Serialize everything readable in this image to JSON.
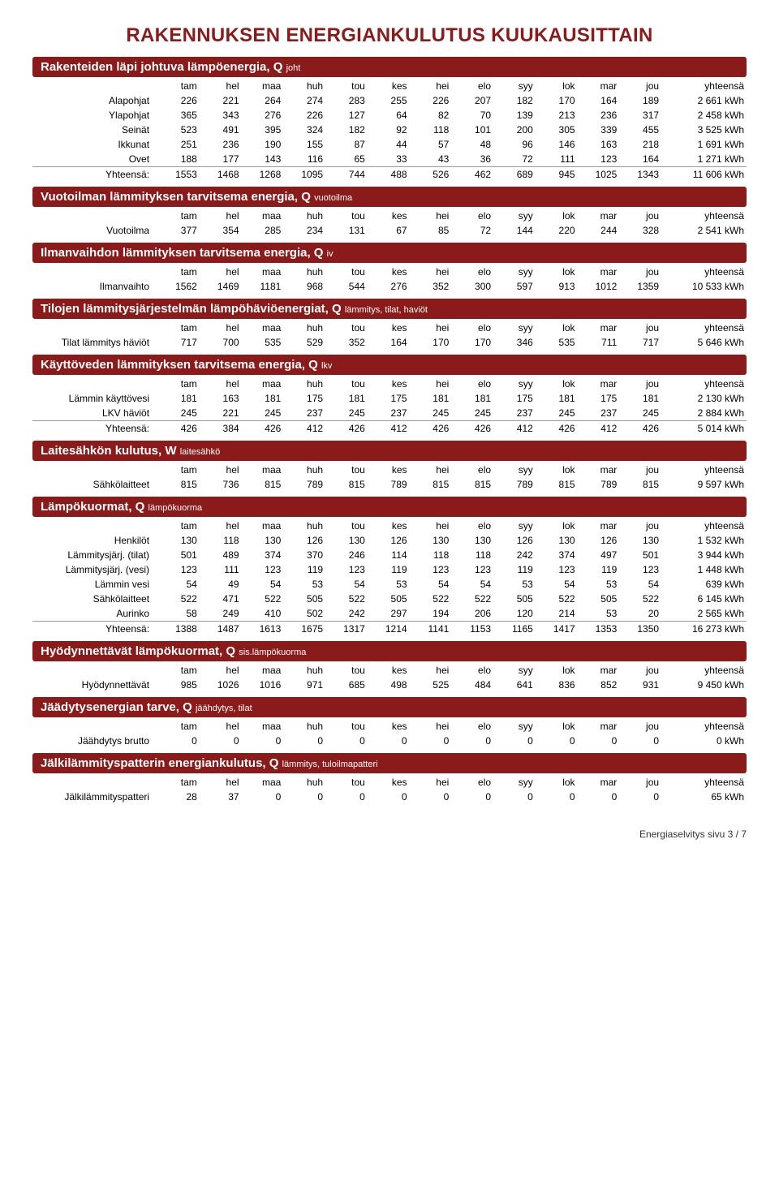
{
  "title": "RAKENNUKSEN ENERGIANKULUTUS KUUKAUSITTAIN",
  "months": [
    "tam",
    "hel",
    "maa",
    "huh",
    "tou",
    "kes",
    "hei",
    "elo",
    "syy",
    "lok",
    "mar",
    "jou"
  ],
  "total_label": "yhteensä",
  "yhteensa_row_label": "Yhteensä:",
  "footer": "Energiaselvitys sivu 3 / 7",
  "sections": [
    {
      "title": "Rakenteiden läpi johtuva lämpöenergia, Q ",
      "sub": "joht",
      "rows": [
        {
          "label": "Alapohjat",
          "v": [
            226,
            221,
            264,
            274,
            283,
            255,
            226,
            207,
            182,
            170,
            164,
            189
          ],
          "t": "2 661 kWh"
        },
        {
          "label": "Ylapohjat",
          "v": [
            365,
            343,
            276,
            226,
            127,
            64,
            82,
            70,
            139,
            213,
            236,
            317
          ],
          "t": "2 458 kWh"
        },
        {
          "label": "Seinät",
          "v": [
            523,
            491,
            395,
            324,
            182,
            92,
            118,
            101,
            200,
            305,
            339,
            455
          ],
          "t": "3 525 kWh"
        },
        {
          "label": "Ikkunat",
          "v": [
            251,
            236,
            190,
            155,
            87,
            44,
            57,
            48,
            96,
            146,
            163,
            218
          ],
          "t": "1 691 kWh"
        },
        {
          "label": "Ovet",
          "v": [
            188,
            177,
            143,
            116,
            65,
            33,
            43,
            36,
            72,
            111,
            123,
            164
          ],
          "t": "1 271 kWh"
        }
      ],
      "total": {
        "v": [
          1553,
          1468,
          1268,
          1095,
          744,
          488,
          526,
          462,
          689,
          945,
          1025,
          1343
        ],
        "t": "11 606 kWh"
      }
    },
    {
      "title": "Vuotoilman lämmityksen tarvitsema energia, Q ",
      "sub": "vuotoilma",
      "rows": [
        {
          "label": "Vuotoilma",
          "v": [
            377,
            354,
            285,
            234,
            131,
            67,
            85,
            72,
            144,
            220,
            244,
            328
          ],
          "t": "2 541 kWh"
        }
      ]
    },
    {
      "title": "Ilmanvaihdon lämmityksen tarvitsema energia, Q ",
      "sub": "iv",
      "rows": [
        {
          "label": "Ilmanvaihto",
          "v": [
            1562,
            1469,
            1181,
            968,
            544,
            276,
            352,
            300,
            597,
            913,
            1012,
            1359
          ],
          "t": "10 533 kWh"
        }
      ]
    },
    {
      "title": "Tilojen lämmitysjärjestelmän lämpöhäviöenergiat, Q ",
      "sub": "lämmitys, tilat, haviöt",
      "rows": [
        {
          "label": "Tilat lämmitys häviöt",
          "v": [
            717,
            700,
            535,
            529,
            352,
            164,
            170,
            170,
            346,
            535,
            711,
            717
          ],
          "t": "5 646 kWh"
        }
      ]
    },
    {
      "title": "Käyttöveden lämmityksen tarvitsema energia, Q ",
      "sub": "lkv",
      "rows": [
        {
          "label": "Lämmin käyttövesi",
          "v": [
            181,
            163,
            181,
            175,
            181,
            175,
            181,
            181,
            175,
            181,
            175,
            181
          ],
          "t": "2 130 kWh"
        },
        {
          "label": "LKV häviöt",
          "v": [
            245,
            221,
            245,
            237,
            245,
            237,
            245,
            245,
            237,
            245,
            237,
            245
          ],
          "t": "2 884 kWh"
        }
      ],
      "total": {
        "v": [
          426,
          384,
          426,
          412,
          426,
          412,
          426,
          426,
          412,
          426,
          412,
          426
        ],
        "t": "5 014 kWh"
      }
    },
    {
      "title": "Laitesähkön kulutus, W ",
      "sub": "laitesähkö",
      "rows": [
        {
          "label": "Sähkölaitteet",
          "v": [
            815,
            736,
            815,
            789,
            815,
            789,
            815,
            815,
            789,
            815,
            789,
            815
          ],
          "t": "9 597 kWh"
        }
      ]
    },
    {
      "title": "Lämpökuormat, Q ",
      "sub": "lämpökuorma",
      "rows": [
        {
          "label": "Henkilöt",
          "v": [
            130,
            118,
            130,
            126,
            130,
            126,
            130,
            130,
            126,
            130,
            126,
            130
          ],
          "t": "1 532 kWh"
        },
        {
          "label": "Lämmitysjärj. (tilat)",
          "v": [
            501,
            489,
            374,
            370,
            246,
            114,
            118,
            118,
            242,
            374,
            497,
            501
          ],
          "t": "3 944 kWh"
        },
        {
          "label": "Lämmitysjärj. (vesi)",
          "v": [
            123,
            111,
            123,
            119,
            123,
            119,
            123,
            123,
            119,
            123,
            119,
            123
          ],
          "t": "1 448 kWh"
        },
        {
          "label": "Lämmin vesi",
          "v": [
            54,
            49,
            54,
            53,
            54,
            53,
            54,
            54,
            53,
            54,
            53,
            54
          ],
          "t": "639 kWh"
        },
        {
          "label": "Sähkölaitteet",
          "v": [
            522,
            471,
            522,
            505,
            522,
            505,
            522,
            522,
            505,
            522,
            505,
            522
          ],
          "t": "6 145 kWh"
        },
        {
          "label": "Aurinko",
          "v": [
            58,
            249,
            410,
            502,
            242,
            297,
            194,
            206,
            120,
            214,
            53,
            20
          ],
          "t": "2 565 kWh"
        }
      ],
      "total": {
        "v": [
          1388,
          1487,
          1613,
          1675,
          1317,
          1214,
          1141,
          1153,
          1165,
          1417,
          1353,
          1350
        ],
        "t": "16 273 kWh"
      }
    },
    {
      "title": "Hyödynnettävät lämpökuormat, Q ",
      "sub": "sis.lämpökuorma",
      "rows": [
        {
          "label": "Hyödynnettävät",
          "v": [
            985,
            1026,
            1016,
            971,
            685,
            498,
            525,
            484,
            641,
            836,
            852,
            931
          ],
          "t": "9 450 kWh"
        }
      ]
    },
    {
      "title": "Jäädytysenergian tarve, Q ",
      "sub": "jäähdytys, tilat",
      "rows": [
        {
          "label": "Jäähdytys brutto",
          "v": [
            0,
            0,
            0,
            0,
            0,
            0,
            0,
            0,
            0,
            0,
            0,
            0
          ],
          "t": "0 kWh"
        }
      ]
    },
    {
      "title": "Jälkilämmityspatterin energiankulutus, Q ",
      "sub": "lämmitys, tuloilmapatteri",
      "rows": [
        {
          "label": "Jälkilämmityspatteri",
          "v": [
            28,
            37,
            0,
            0,
            0,
            0,
            0,
            0,
            0,
            0,
            0,
            0
          ],
          "t": "65 kWh"
        }
      ]
    }
  ]
}
